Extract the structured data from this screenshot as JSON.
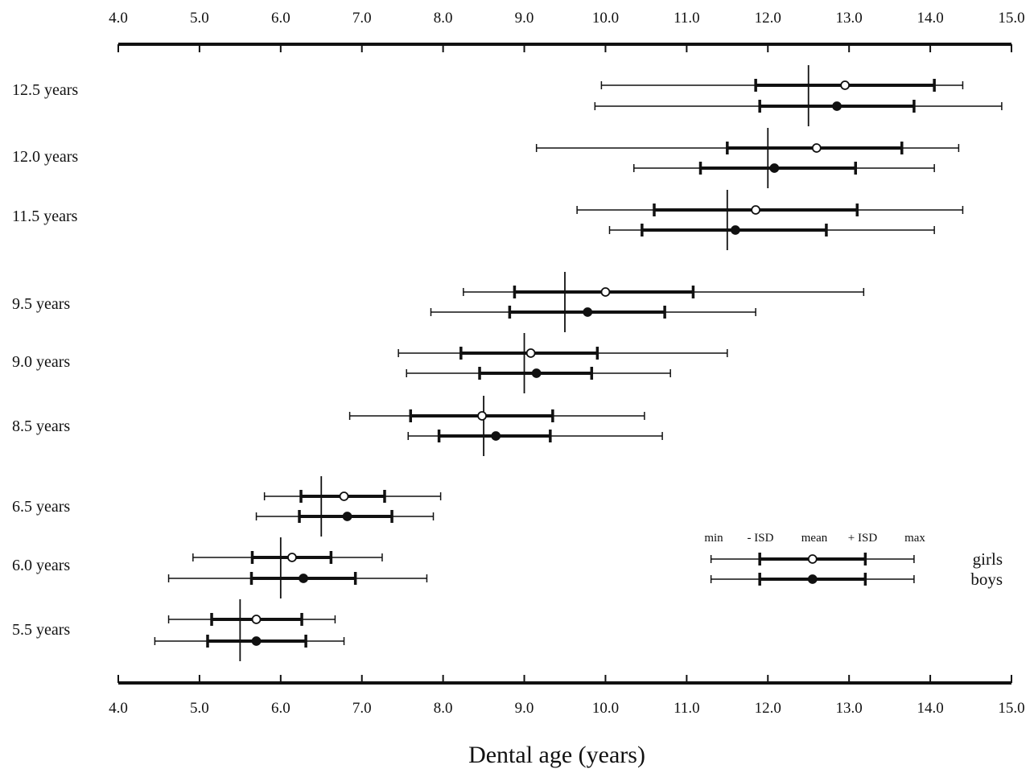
{
  "chart_data": {
    "type": "errorbar",
    "xlabel": "Dental age (years)",
    "xlim": [
      4.0,
      15.0
    ],
    "ticks": [
      "4.0",
      "5.0",
      "6.0",
      "7.0",
      "8.0",
      "9.0",
      "10.0",
      "11.0",
      "12.0",
      "13.0",
      "14.0",
      "15.0"
    ],
    "legend": {
      "labels": [
        "min",
        "- ISD",
        "mean",
        "+ ISD",
        "max"
      ],
      "series": [
        {
          "name": "girls",
          "marker": "open",
          "min": 11.3,
          "minus_sd": 11.9,
          "mean": 12.55,
          "plus_sd": 13.2,
          "max": 13.8
        },
        {
          "name": "boys",
          "marker": "filled",
          "min": 11.3,
          "minus_sd": 11.9,
          "mean": 12.55,
          "plus_sd": 13.2,
          "max": 13.8
        }
      ]
    },
    "groups": [
      {
        "label": "12.5 years",
        "chronological_age": 12.5,
        "girls": {
          "min": 9.95,
          "minus_sd": 11.85,
          "mean": 12.95,
          "plus_sd": 14.05,
          "max": 14.4
        },
        "boys": {
          "min": 9.87,
          "minus_sd": 11.9,
          "mean": 12.85,
          "plus_sd": 13.8,
          "max": 14.88
        }
      },
      {
        "label": "12.0 years",
        "chronological_age": 12.0,
        "girls": {
          "min": 9.15,
          "minus_sd": 11.5,
          "mean": 12.6,
          "plus_sd": 13.65,
          "max": 14.35
        },
        "boys": {
          "min": 10.35,
          "minus_sd": 11.17,
          "mean": 12.08,
          "plus_sd": 13.08,
          "max": 14.05
        }
      },
      {
        "label": "11.5 years",
        "chronological_age": 11.5,
        "girls": {
          "min": 9.65,
          "minus_sd": 10.6,
          "mean": 11.85,
          "plus_sd": 13.1,
          "max": 14.4
        },
        "boys": {
          "min": 10.05,
          "minus_sd": 10.45,
          "mean": 11.6,
          "plus_sd": 12.72,
          "max": 14.05
        }
      },
      {
        "label": "9.5 years",
        "chronological_age": 9.5,
        "girls": {
          "min": 8.25,
          "minus_sd": 8.88,
          "mean": 10.0,
          "plus_sd": 11.08,
          "max": 13.18
        },
        "boys": {
          "min": 7.85,
          "minus_sd": 8.82,
          "mean": 9.78,
          "plus_sd": 10.73,
          "max": 11.85
        }
      },
      {
        "label": "9.0 years",
        "chronological_age": 9.0,
        "girls": {
          "min": 7.45,
          "minus_sd": 8.22,
          "mean": 9.08,
          "plus_sd": 9.9,
          "max": 11.5
        },
        "boys": {
          "min": 7.55,
          "minus_sd": 8.45,
          "mean": 9.15,
          "plus_sd": 9.83,
          "max": 10.8
        }
      },
      {
        "label": "8.5 years",
        "chronological_age": 8.5,
        "girls": {
          "min": 6.85,
          "minus_sd": 7.6,
          "mean": 8.48,
          "plus_sd": 9.35,
          "max": 10.48
        },
        "boys": {
          "min": 7.57,
          "minus_sd": 7.95,
          "mean": 8.65,
          "plus_sd": 9.32,
          "max": 10.7
        }
      },
      {
        "label": "6.5 years",
        "chronological_age": 6.5,
        "girls": {
          "min": 5.8,
          "minus_sd": 6.25,
          "mean": 6.78,
          "plus_sd": 7.28,
          "max": 7.97
        },
        "boys": {
          "min": 5.7,
          "minus_sd": 6.23,
          "mean": 6.82,
          "plus_sd": 7.37,
          "max": 7.88
        }
      },
      {
        "label": "6.0 years",
        "chronological_age": 6.0,
        "girls": {
          "min": 4.92,
          "minus_sd": 5.65,
          "mean": 6.14,
          "plus_sd": 6.62,
          "max": 7.25
        },
        "boys": {
          "min": 4.62,
          "minus_sd": 5.64,
          "mean": 6.28,
          "plus_sd": 6.92,
          "max": 7.8
        }
      },
      {
        "label": "5.5 years",
        "chronological_age": 5.5,
        "girls": {
          "min": 4.62,
          "minus_sd": 5.15,
          "mean": 5.7,
          "plus_sd": 6.26,
          "max": 6.67
        },
        "boys": {
          "min": 4.45,
          "minus_sd": 5.1,
          "mean": 5.7,
          "plus_sd": 6.31,
          "max": 6.78
        }
      }
    ]
  }
}
